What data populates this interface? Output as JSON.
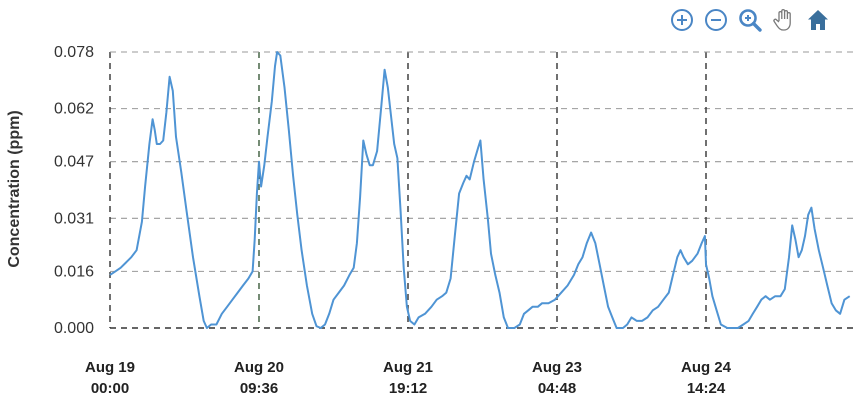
{
  "toolbar": {
    "icons": [
      "zoom-in-icon",
      "zoom-out-icon",
      "magnify-icon",
      "pan-hand-icon",
      "home-icon"
    ],
    "icon_color": "#4a86c5",
    "home_color": "#3a6f9c"
  },
  "chart_data": {
    "type": "line",
    "title": "",
    "xlabel": "",
    "ylabel": "Concentration (ppm)",
    "ylim": [
      0,
      0.078
    ],
    "y_ticks": [
      "0.078",
      "0.062",
      "0.047",
      "0.031",
      "0.016",
      "0.000"
    ],
    "y_tick_values": [
      0.078,
      0.062,
      0.047,
      0.031,
      0.016,
      0.0
    ],
    "x_ticks": [
      {
        "day": 0,
        "line1": "Aug 19",
        "line2": "00:00"
      },
      {
        "day": 1.4,
        "line1": "Aug 20",
        "line2": "09:36"
      },
      {
        "day": 2.8,
        "line1": "Aug 21",
        "line2": "19:12"
      },
      {
        "day": 4.2,
        "line1": "Aug 23",
        "line2": "04:48"
      },
      {
        "day": 5.6,
        "line1": "Aug 24",
        "line2": "14:24"
      }
    ],
    "xlim_days": [
      0,
      6.95
    ],
    "grid": true,
    "line_color": "#4f94d4",
    "series": [
      {
        "name": "",
        "points": [
          [
            0.0,
            0.015
          ],
          [
            0.05,
            0.016
          ],
          [
            0.1,
            0.017
          ],
          [
            0.15,
            0.0185
          ],
          [
            0.2,
            0.02
          ],
          [
            0.25,
            0.022
          ],
          [
            0.3,
            0.03
          ],
          [
            0.33,
            0.04
          ],
          [
            0.37,
            0.052
          ],
          [
            0.4,
            0.059
          ],
          [
            0.42,
            0.056
          ],
          [
            0.44,
            0.052
          ],
          [
            0.47,
            0.052
          ],
          [
            0.5,
            0.053
          ],
          [
            0.53,
            0.061
          ],
          [
            0.56,
            0.071
          ],
          [
            0.59,
            0.067
          ],
          [
            0.62,
            0.054
          ],
          [
            0.67,
            0.044
          ],
          [
            0.72,
            0.033
          ],
          [
            0.78,
            0.02
          ],
          [
            0.84,
            0.009
          ],
          [
            0.88,
            0.002
          ],
          [
            0.91,
            0.0
          ],
          [
            0.95,
            0.001
          ],
          [
            1.0,
            0.001
          ],
          [
            1.05,
            0.004
          ],
          [
            1.1,
            0.006
          ],
          [
            1.15,
            0.008
          ],
          [
            1.2,
            0.01
          ],
          [
            1.25,
            0.012
          ],
          [
            1.3,
            0.014
          ],
          [
            1.34,
            0.016
          ],
          [
            1.36,
            0.025
          ],
          [
            1.38,
            0.038
          ],
          [
            1.4,
            0.047
          ],
          [
            1.42,
            0.04
          ],
          [
            1.45,
            0.046
          ],
          [
            1.48,
            0.054
          ],
          [
            1.52,
            0.064
          ],
          [
            1.55,
            0.074
          ],
          [
            1.57,
            0.078
          ],
          [
            1.6,
            0.077
          ],
          [
            1.64,
            0.068
          ],
          [
            1.68,
            0.056
          ],
          [
            1.72,
            0.043
          ],
          [
            1.76,
            0.032
          ],
          [
            1.8,
            0.022
          ],
          [
            1.85,
            0.012
          ],
          [
            1.9,
            0.004
          ],
          [
            1.94,
            0.0005
          ],
          [
            1.98,
            0.0
          ],
          [
            2.02,
            0.001
          ],
          [
            2.06,
            0.004
          ],
          [
            2.1,
            0.008
          ],
          [
            2.15,
            0.01
          ],
          [
            2.2,
            0.012
          ],
          [
            2.25,
            0.015
          ],
          [
            2.29,
            0.017
          ],
          [
            2.32,
            0.024
          ],
          [
            2.35,
            0.037
          ],
          [
            2.38,
            0.053
          ],
          [
            2.41,
            0.049
          ],
          [
            2.44,
            0.046
          ],
          [
            2.47,
            0.046
          ],
          [
            2.51,
            0.05
          ],
          [
            2.55,
            0.063
          ],
          [
            2.58,
            0.073
          ],
          [
            2.61,
            0.068
          ],
          [
            2.64,
            0.06
          ],
          [
            2.67,
            0.052
          ],
          [
            2.7,
            0.048
          ],
          [
            2.73,
            0.033
          ],
          [
            2.76,
            0.017
          ],
          [
            2.79,
            0.006
          ],
          [
            2.82,
            0.002
          ],
          [
            2.86,
            0.001
          ],
          [
            2.9,
            0.003
          ],
          [
            2.96,
            0.004
          ],
          [
            3.02,
            0.006
          ],
          [
            3.07,
            0.008
          ],
          [
            3.12,
            0.009
          ],
          [
            3.16,
            0.01
          ],
          [
            3.2,
            0.014
          ],
          [
            3.24,
            0.026
          ],
          [
            3.28,
            0.038
          ],
          [
            3.32,
            0.041
          ],
          [
            3.35,
            0.043
          ],
          [
            3.38,
            0.042
          ],
          [
            3.42,
            0.047
          ],
          [
            3.46,
            0.051
          ],
          [
            3.48,
            0.053
          ],
          [
            3.51,
            0.042
          ],
          [
            3.55,
            0.031
          ],
          [
            3.58,
            0.021
          ],
          [
            3.62,
            0.015
          ],
          [
            3.66,
            0.01
          ],
          [
            3.7,
            0.003
          ],
          [
            3.74,
            0.0
          ],
          [
            3.8,
            0.0
          ],
          [
            3.85,
            0.001
          ],
          [
            3.89,
            0.004
          ],
          [
            3.93,
            0.005
          ],
          [
            3.97,
            0.006
          ],
          [
            4.02,
            0.006
          ],
          [
            4.06,
            0.007
          ],
          [
            4.12,
            0.007
          ],
          [
            4.18,
            0.008
          ],
          [
            4.24,
            0.01
          ],
          [
            4.3,
            0.012
          ],
          [
            4.36,
            0.015
          ],
          [
            4.4,
            0.018
          ],
          [
            4.44,
            0.02
          ],
          [
            4.48,
            0.024
          ],
          [
            4.52,
            0.027
          ],
          [
            4.56,
            0.024
          ],
          [
            4.6,
            0.018
          ],
          [
            4.64,
            0.012
          ],
          [
            4.68,
            0.006
          ],
          [
            4.72,
            0.003
          ],
          [
            4.76,
            0.0
          ],
          [
            4.82,
            0.0
          ],
          [
            4.86,
            0.001
          ],
          [
            4.9,
            0.003
          ],
          [
            4.95,
            0.002
          ],
          [
            5.0,
            0.002
          ],
          [
            5.05,
            0.003
          ],
          [
            5.1,
            0.005
          ],
          [
            5.15,
            0.006
          ],
          [
            5.2,
            0.008
          ],
          [
            5.25,
            0.01
          ],
          [
            5.29,
            0.015
          ],
          [
            5.33,
            0.02
          ],
          [
            5.36,
            0.022
          ],
          [
            5.39,
            0.02
          ],
          [
            5.43,
            0.018
          ],
          [
            5.47,
            0.019
          ],
          [
            5.52,
            0.021
          ],
          [
            5.56,
            0.024
          ],
          [
            5.59,
            0.026
          ],
          [
            5.6,
            0.018
          ],
          [
            5.63,
            0.014
          ],
          [
            5.66,
            0.009
          ],
          [
            5.7,
            0.005
          ],
          [
            5.74,
            0.001
          ],
          [
            5.8,
            0.0
          ],
          [
            5.85,
            0.0
          ],
          [
            5.9,
            0.0
          ],
          [
            5.95,
            0.001
          ],
          [
            6.0,
            0.002
          ],
          [
            6.04,
            0.004
          ],
          [
            6.08,
            0.006
          ],
          [
            6.12,
            0.008
          ],
          [
            6.16,
            0.009
          ],
          [
            6.2,
            0.008
          ],
          [
            6.25,
            0.009
          ],
          [
            6.3,
            0.009
          ],
          [
            6.34,
            0.011
          ],
          [
            6.38,
            0.02
          ],
          [
            6.41,
            0.029
          ],
          [
            6.44,
            0.025
          ],
          [
            6.47,
            0.02
          ],
          [
            6.5,
            0.022
          ],
          [
            6.53,
            0.026
          ],
          [
            6.56,
            0.032
          ],
          [
            6.59,
            0.034
          ],
          [
            6.62,
            0.028
          ],
          [
            6.66,
            0.022
          ],
          [
            6.7,
            0.017
          ],
          [
            6.74,
            0.012
          ],
          [
            6.78,
            0.007
          ],
          [
            6.82,
            0.005
          ],
          [
            6.86,
            0.004
          ],
          [
            6.9,
            0.008
          ],
          [
            6.95,
            0.009
          ]
        ]
      }
    ]
  }
}
